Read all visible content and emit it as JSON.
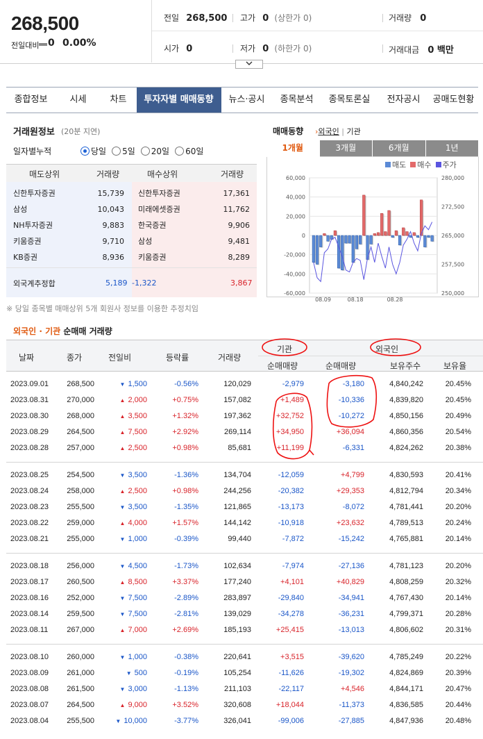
{
  "quote": {
    "price": "268,500",
    "change_label": "전일대비",
    "change_value": "0",
    "change_pct": "0.00%",
    "prev_label": "전일",
    "prev_value": "268,500",
    "high_label": "고가",
    "high_value": "0",
    "upper_limit": "(상한가 0)",
    "volume_label": "거래량",
    "volume_value": "0",
    "open_label": "시가",
    "open_value": "0",
    "low_label": "저가",
    "low_value": "0",
    "lower_limit": "(하한가 0)",
    "amount_label": "거래대금",
    "amount_value": "0 백만",
    "expand_icon": "chevron-down-icon"
  },
  "tabs": [
    "종합정보",
    "시세",
    "차트",
    "투자자별 매매동향",
    "뉴스·공시",
    "종목분석",
    "종목토론실",
    "전자공시",
    "공매도현황"
  ],
  "active_tab": 3,
  "broker": {
    "title": "거래원정보",
    "delay": "(20분 지연)",
    "accum_label": "일자별누적",
    "periods": [
      "당일",
      "5일",
      "20일",
      "60일"
    ],
    "selected_period": 0,
    "headers": [
      "매도상위",
      "거래량",
      "매수상위",
      "거래량"
    ],
    "sell": [
      {
        "name": "신한투자증권",
        "vol": "15,739"
      },
      {
        "name": "삼성",
        "vol": "10,043"
      },
      {
        "name": "NH투자증권",
        "vol": "9,883"
      },
      {
        "name": "키움증권",
        "vol": "9,710"
      },
      {
        "name": "KB증권",
        "vol": "8,936"
      }
    ],
    "buy": [
      {
        "name": "신한투자증권",
        "vol": "17,361"
      },
      {
        "name": "미래에셋증권",
        "vol": "11,762"
      },
      {
        "name": "한국증권",
        "vol": "9,906"
      },
      {
        "name": "삼성",
        "vol": "9,481"
      },
      {
        "name": "키움증권",
        "vol": "8,289"
      }
    ],
    "foreign_label": "외국계추정합",
    "foreign_sell": "5,189",
    "foreign_net": "-1,322",
    "foreign_buy": "3,867",
    "note": "※ 당일 종목별 매매상위 5개 회원사 정보를 이용한 추정치임"
  },
  "chart": {
    "title": "매매동향",
    "toggle_foreign": "외국인",
    "toggle_inst": "기관",
    "periods": [
      "1개월",
      "3개월",
      "6개월",
      "1년"
    ],
    "active_period": 0,
    "legend": [
      "매도",
      "매수",
      "주가"
    ],
    "colors": {
      "sell": "#5b8ad6",
      "buy": "#e36a6a",
      "price": "#5a55e0"
    },
    "chart_data": {
      "type": "bar",
      "left_axis_ticks": [
        "60,000",
        "40,000",
        "20,000",
        "0",
        "-20,000",
        "-40,000",
        "-60,000"
      ],
      "right_axis_ticks": [
        "280,000",
        "272,500",
        "265,000",
        "257,500",
        "250,000"
      ],
      "x_ticks": [
        "08.09",
        "08.18",
        "08.28"
      ],
      "ylim": [
        -60000,
        60000
      ],
      "y2lim": [
        250000,
        280000
      ],
      "bars": [
        -28000,
        -30000,
        -12000,
        2000,
        -6000,
        -4000,
        5000,
        -34000,
        -36000,
        -8000,
        -8000,
        -28000,
        -14000,
        -9000,
        42000,
        -25000,
        -9000,
        2000,
        3000,
        23000,
        4000,
        26000,
        -2000,
        5000,
        -10000,
        8000,
        4000,
        -2000,
        3000,
        -2000,
        37000,
        -12000,
        -2000,
        -6000
      ],
      "price": [
        258000,
        254000,
        253000,
        260500,
        261500,
        264000,
        264500,
        262000,
        259500,
        256000,
        255500,
        258000,
        259000,
        258500,
        253500,
        259000,
        262000,
        258000,
        263000,
        259500,
        256500,
        262000,
        257500,
        255000,
        258000,
        262500,
        264000,
        266000,
        263000,
        261000,
        265500,
        267500,
        266500,
        268500
      ]
    }
  },
  "net": {
    "title_foreign": "외국인",
    "title_dot": "·",
    "title_inst": "기관",
    "title_rest": "순매매 거래량",
    "headers": {
      "date": "날짜",
      "close": "종가",
      "diff": "전일비",
      "rate": "등락률",
      "vol": "거래량",
      "inst_group": "기관",
      "inst_net": "순매매량",
      "for_group": "외국인",
      "for_net": "순매매량",
      "for_hold": "보유주수",
      "for_ratio": "보유율"
    },
    "groups": [
      [
        {
          "date": "2023.09.01",
          "close": "268,500",
          "dir": "dn",
          "diff": "1,500",
          "rate": "-0.56%",
          "vol": "120,029",
          "inst": "-2,979",
          "for": "-3,180",
          "hold": "4,840,242",
          "ratio": "20.45%"
        },
        {
          "date": "2023.08.31",
          "close": "270,000",
          "dir": "up",
          "diff": "2,000",
          "rate": "+0.75%",
          "vol": "157,082",
          "inst": "+1,489",
          "for": "-10,336",
          "hold": "4,839,820",
          "ratio": "20.45%"
        },
        {
          "date": "2023.08.30",
          "close": "268,000",
          "dir": "up",
          "diff": "3,500",
          "rate": "+1.32%",
          "vol": "197,362",
          "inst": "+32,752",
          "for": "-10,272",
          "hold": "4,850,156",
          "ratio": "20.49%"
        },
        {
          "date": "2023.08.29",
          "close": "264,500",
          "dir": "up",
          "diff": "7,500",
          "rate": "+2.92%",
          "vol": "269,114",
          "inst": "+34,950",
          "for": "+36,094",
          "hold": "4,860,356",
          "ratio": "20.54%"
        },
        {
          "date": "2023.08.28",
          "close": "257,000",
          "dir": "up",
          "diff": "2,500",
          "rate": "+0.98%",
          "vol": "85,681",
          "inst": "+11,199",
          "for": "-6,331",
          "hold": "4,824,262",
          "ratio": "20.38%"
        }
      ],
      [
        {
          "date": "2023.08.25",
          "close": "254,500",
          "dir": "dn",
          "diff": "3,500",
          "rate": "-1.36%",
          "vol": "134,704",
          "inst": "-12,059",
          "for": "+4,799",
          "hold": "4,830,593",
          "ratio": "20.41%"
        },
        {
          "date": "2023.08.24",
          "close": "258,000",
          "dir": "up",
          "diff": "2,500",
          "rate": "+0.98%",
          "vol": "244,256",
          "inst": "-20,382",
          "for": "+29,353",
          "hold": "4,812,794",
          "ratio": "20.34%"
        },
        {
          "date": "2023.08.23",
          "close": "255,500",
          "dir": "dn",
          "diff": "3,500",
          "rate": "-1.35%",
          "vol": "121,865",
          "inst": "-13,173",
          "for": "-8,072",
          "hold": "4,781,441",
          "ratio": "20.20%"
        },
        {
          "date": "2023.08.22",
          "close": "259,000",
          "dir": "up",
          "diff": "4,000",
          "rate": "+1.57%",
          "vol": "144,142",
          "inst": "-10,918",
          "for": "+23,632",
          "hold": "4,789,513",
          "ratio": "20.24%"
        },
        {
          "date": "2023.08.21",
          "close": "255,000",
          "dir": "dn",
          "diff": "1,000",
          "rate": "-0.39%",
          "vol": "99,440",
          "inst": "-7,872",
          "for": "-15,242",
          "hold": "4,765,881",
          "ratio": "20.14%"
        }
      ],
      [
        {
          "date": "2023.08.18",
          "close": "256,000",
          "dir": "dn",
          "diff": "4,500",
          "rate": "-1.73%",
          "vol": "102,634",
          "inst": "-7,974",
          "for": "-27,136",
          "hold": "4,781,123",
          "ratio": "20.20%"
        },
        {
          "date": "2023.08.17",
          "close": "260,500",
          "dir": "up",
          "diff": "8,500",
          "rate": "+3.37%",
          "vol": "177,240",
          "inst": "+4,101",
          "for": "+40,829",
          "hold": "4,808,259",
          "ratio": "20.32%"
        },
        {
          "date": "2023.08.16",
          "close": "252,000",
          "dir": "dn",
          "diff": "7,500",
          "rate": "-2.89%",
          "vol": "283,897",
          "inst": "-29,840",
          "for": "-34,941",
          "hold": "4,767,430",
          "ratio": "20.14%"
        },
        {
          "date": "2023.08.14",
          "close": "259,500",
          "dir": "dn",
          "diff": "7,500",
          "rate": "-2.81%",
          "vol": "139,029",
          "inst": "-34,278",
          "for": "-36,231",
          "hold": "4,799,371",
          "ratio": "20.28%"
        },
        {
          "date": "2023.08.11",
          "close": "267,000",
          "dir": "up",
          "diff": "7,000",
          "rate": "+2.69%",
          "vol": "185,193",
          "inst": "+25,415",
          "for": "-13,013",
          "hold": "4,806,602",
          "ratio": "20.31%"
        }
      ],
      [
        {
          "date": "2023.08.10",
          "close": "260,000",
          "dir": "dn",
          "diff": "1,000",
          "rate": "-0.38%",
          "vol": "220,641",
          "inst": "+3,515",
          "for": "-39,620",
          "hold": "4,785,249",
          "ratio": "20.22%"
        },
        {
          "date": "2023.08.09",
          "close": "261,000",
          "dir": "dn",
          "diff": "500",
          "rate": "-0.19%",
          "vol": "105,254",
          "inst": "-11,626",
          "for": "-19,302",
          "hold": "4,824,869",
          "ratio": "20.39%"
        },
        {
          "date": "2023.08.08",
          "close": "261,500",
          "dir": "dn",
          "diff": "3,000",
          "rate": "-1.13%",
          "vol": "211,103",
          "inst": "-22,117",
          "for": "+4,546",
          "hold": "4,844,171",
          "ratio": "20.47%"
        },
        {
          "date": "2023.08.07",
          "close": "264,500",
          "dir": "up",
          "diff": "9,000",
          "rate": "+3.52%",
          "vol": "320,608",
          "inst": "+18,044",
          "for": "-11,373",
          "hold": "4,836,585",
          "ratio": "20.44%"
        },
        {
          "date": "2023.08.04",
          "close": "255,500",
          "dir": "dn",
          "diff": "10,000",
          "rate": "-3.77%",
          "vol": "326,041",
          "inst": "-99,006",
          "for": "-27,885",
          "hold": "4,847,936",
          "ratio": "20.48%"
        }
      ]
    ]
  }
}
